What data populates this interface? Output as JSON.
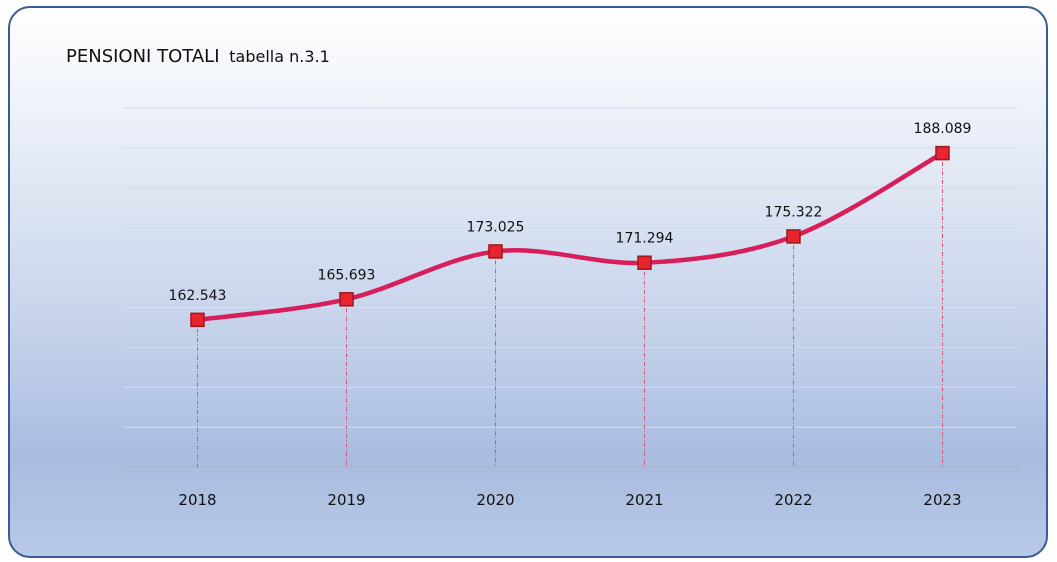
{
  "title": {
    "main": "PENSIONI TOTALI",
    "sub": "tabella n.3.1"
  },
  "chart_data": {
    "type": "line",
    "categories": [
      "2018",
      "2019",
      "2020",
      "2021",
      "2022",
      "2023"
    ],
    "values": [
      162543,
      165693,
      173025,
      171294,
      175322,
      188089
    ],
    "data_labels": [
      "162.543",
      "165.693",
      "173.025",
      "171.294",
      "175.322",
      "188.089"
    ],
    "title": "PENSIONI TOTALI tabella n.3.1",
    "xlabel": "",
    "ylabel": "",
    "ylim": [
      140000,
      195000
    ],
    "smooth": true,
    "markers": "square",
    "drop_lines": true,
    "grid": true,
    "legend": "none",
    "colors": {
      "line": "#d81e5b",
      "marker_fill": "#e8242f",
      "marker_border": "#9a1a1a",
      "drop_line": "#e2506f",
      "grid": "#d4dcec",
      "axis": "#a9b4c8"
    }
  }
}
